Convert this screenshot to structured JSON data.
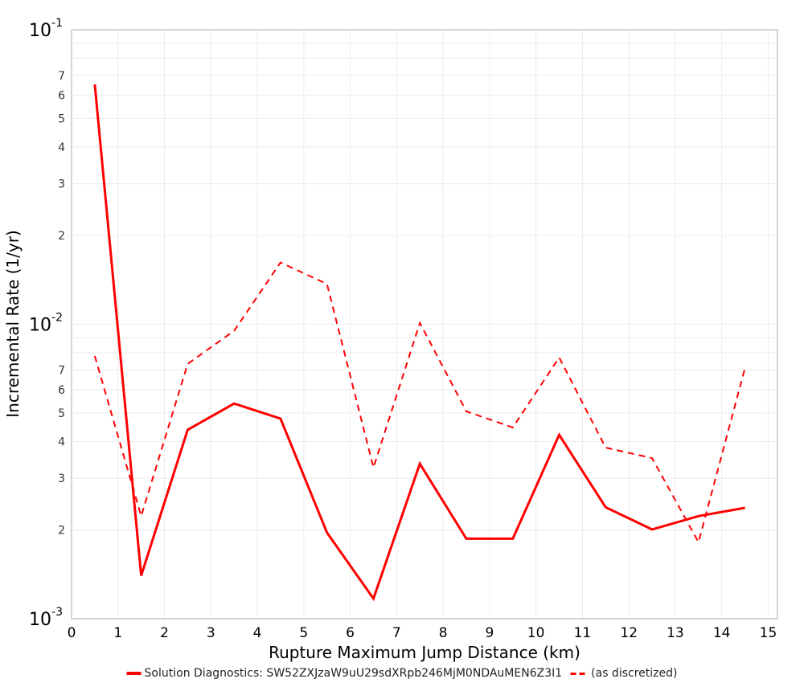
{
  "chart_data": {
    "type": "line",
    "title": "",
    "xlabel": "Rupture Maximum Jump Distance (km)",
    "ylabel": "Incremental Rate (1/yr)",
    "xlim": [
      0,
      15.2
    ],
    "ylim": [
      0.001,
      0.1
    ],
    "yscale": "log",
    "grid": true,
    "legend_position": "bottom",
    "x_ticks": [
      "0",
      "1",
      "2",
      "3",
      "4",
      "5",
      "6",
      "7",
      "8",
      "9",
      "10",
      "11",
      "12",
      "13",
      "14",
      "15"
    ],
    "y_major_ticks": [
      {
        "value": 0.1,
        "base": "10",
        "exp": "-1"
      },
      {
        "value": 0.01,
        "base": "10",
        "exp": "-2"
      },
      {
        "value": 0.001,
        "base": "10",
        "exp": "-3"
      }
    ],
    "y_minor_ticks_labeled": [
      "2",
      "3",
      "4",
      "5",
      "6",
      "7"
    ],
    "x": [
      0.5,
      1.5,
      2.5,
      3.5,
      4.5,
      5.5,
      6.5,
      7.5,
      8.5,
      9.5,
      10.5,
      11.5,
      12.5,
      13.5,
      14.5
    ],
    "series": [
      {
        "name": "Solution Diagnostics: SW52ZXJzaW9uU29sdXRpb246MjM0NDAuMEN6Z3I1",
        "style": "solid",
        "color": "#ff0000",
        "values": [
          0.0652,
          0.0014,
          0.00438,
          0.00538,
          0.00478,
          0.00196,
          0.00117,
          0.00336,
          0.00187,
          0.00187,
          0.00421,
          0.00239,
          0.00201,
          0.00223,
          0.00238
        ]
      },
      {
        "name": "(as discretized)",
        "style": "dashed",
        "color": "#ff0000",
        "values": [
          0.0078,
          0.00223,
          0.00733,
          0.0095,
          0.0162,
          0.0137,
          0.00326,
          0.0101,
          0.00506,
          0.00446,
          0.00771,
          0.00381,
          0.00351,
          0.00182,
          0.0071
        ]
      }
    ]
  },
  "labels": {
    "xlabel": "Rupture Maximum Jump Distance (km)",
    "ylabel": "Incremental Rate (1/yr)"
  },
  "legend": {
    "items": [
      {
        "label": "Solution Diagnostics: SW52ZXJzaW9uU29sdXRpb246MjM0NDAuMEN6Z3I1"
      },
      {
        "label": "(as discretized)"
      }
    ]
  },
  "colors": {
    "series": "#ff0000",
    "grid": "#ebebeb",
    "frame": "#aaaaaa"
  }
}
